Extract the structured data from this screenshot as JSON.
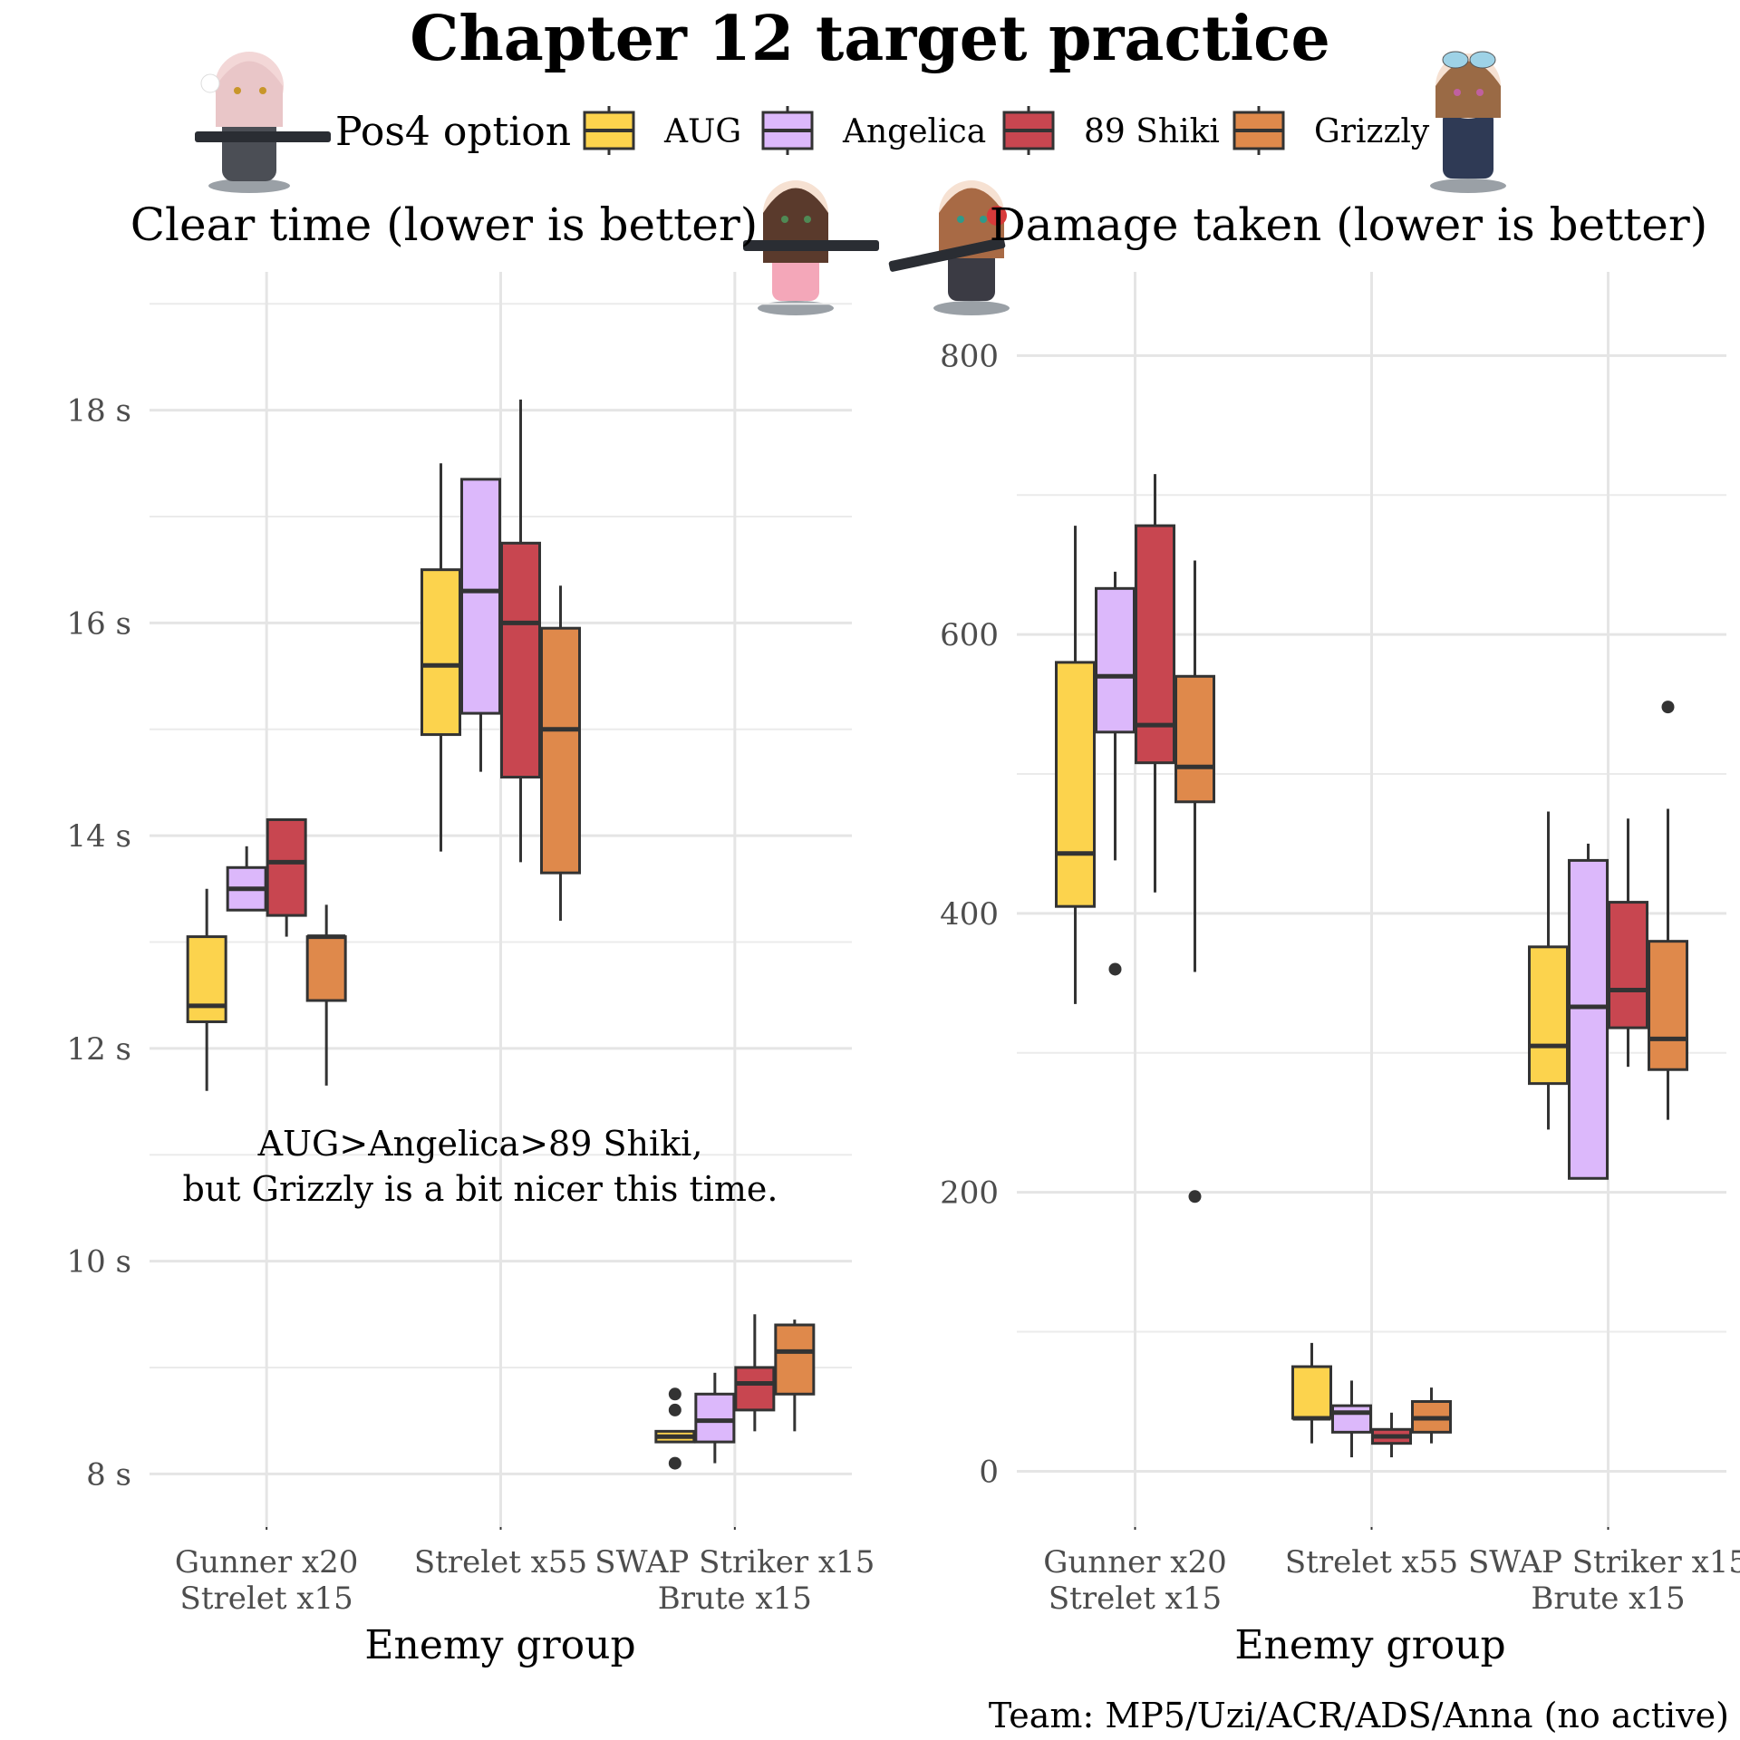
{
  "title": "Chapter 12 target practice",
  "legend": {
    "title": "Pos4 option",
    "placement": "top",
    "entries": [
      {
        "name": "AUG",
        "color": "#fcd34d"
      },
      {
        "name": "Angelica",
        "color": "#dcb8fb"
      },
      {
        "name": "89 Shiki",
        "color": "#c84650"
      },
      {
        "name": "Grizzly",
        "color": "#df894b"
      }
    ]
  },
  "caption": "Team: MP5/Uzi/ACR/ADS/Anna (no active)",
  "chart_data": [
    {
      "type": "box",
      "title": "Clear time (lower is better)",
      "xlabel": "Enemy group",
      "ylabel": "",
      "ylim": [
        7.5,
        19.3
      ],
      "y_ticks": [
        8,
        10,
        12,
        14,
        16,
        18
      ],
      "y_tick_labels": [
        "8 s",
        "10 s",
        "12 s",
        "14 s",
        "16 s",
        "18 s"
      ],
      "grid": true,
      "categories": [
        "Gunner x20\nStrelet x15",
        "Strelet x55",
        "SWAP Striker x15\nBrute x15"
      ],
      "annotation": "AUG>Angelica>89 Shiki,\nbut Grizzly is a bit nicer this time.",
      "series": [
        {
          "name": "AUG",
          "boxes": [
            {
              "min": 11.6,
              "q1": 12.25,
              "median": 12.4,
              "q3": 13.05,
              "max": 13.5,
              "outliers": []
            },
            {
              "min": 13.85,
              "q1": 14.95,
              "median": 15.6,
              "q3": 16.5,
              "max": 17.5,
              "outliers": []
            },
            {
              "min": 8.3,
              "q1": 8.3,
              "median": 8.35,
              "q3": 8.4,
              "max": 8.4,
              "outliers": [
                8.1,
                8.6,
                8.75
              ]
            }
          ]
        },
        {
          "name": "Angelica",
          "boxes": [
            {
              "min": 13.3,
              "q1": 13.3,
              "median": 13.5,
              "q3": 13.7,
              "max": 13.9,
              "outliers": []
            },
            {
              "min": 14.6,
              "q1": 15.15,
              "median": 16.3,
              "q3": 17.35,
              "max": 17.35,
              "outliers": []
            },
            {
              "min": 8.1,
              "q1": 8.3,
              "median": 8.5,
              "q3": 8.75,
              "max": 8.95,
              "outliers": []
            }
          ]
        },
        {
          "name": "89 Shiki",
          "boxes": [
            {
              "min": 13.05,
              "q1": 13.25,
              "median": 13.75,
              "q3": 14.15,
              "max": 14.15,
              "outliers": []
            },
            {
              "min": 13.75,
              "q1": 14.55,
              "median": 16.0,
              "q3": 16.75,
              "max": 18.1,
              "outliers": []
            },
            {
              "min": 8.4,
              "q1": 8.6,
              "median": 8.85,
              "q3": 9.0,
              "max": 9.5,
              "outliers": []
            }
          ]
        },
        {
          "name": "Grizzly",
          "boxes": [
            {
              "min": 11.65,
              "q1": 12.45,
              "median": 13.05,
              "q3": 13.05,
              "max": 13.35,
              "outliers": []
            },
            {
              "min": 13.2,
              "q1": 13.65,
              "median": 15.0,
              "q3": 15.95,
              "max": 16.35,
              "outliers": []
            },
            {
              "min": 8.4,
              "q1": 8.75,
              "median": 9.15,
              "q3": 9.4,
              "max": 9.45,
              "outliers": []
            }
          ]
        }
      ]
    },
    {
      "type": "box",
      "title": "Damage taken (lower is better)",
      "xlabel": "Enemy group",
      "ylabel": "",
      "ylim": [
        -40,
        860
      ],
      "y_ticks": [
        0,
        200,
        400,
        600,
        800
      ],
      "y_tick_labels": [
        "0",
        "200",
        "400",
        "600",
        "800"
      ],
      "grid": true,
      "categories": [
        "Gunner x20\nStrelet x15",
        "Strelet x55",
        "SWAP Striker x15\nBrute x15"
      ],
      "series": [
        {
          "name": "AUG",
          "boxes": [
            {
              "min": 335,
              "q1": 405,
              "median": 443,
              "q3": 580,
              "max": 678,
              "outliers": []
            },
            {
              "min": 20,
              "q1": 38,
              "median": 38,
              "q3": 75,
              "max": 92,
              "outliers": []
            },
            {
              "min": 245,
              "q1": 278,
              "median": 305,
              "q3": 376,
              "max": 473,
              "outliers": []
            }
          ]
        },
        {
          "name": "Angelica",
          "boxes": [
            {
              "min": 438,
              "q1": 530,
              "median": 570,
              "q3": 633,
              "max": 645,
              "outliers": [
                360
              ]
            },
            {
              "min": 10,
              "q1": 28,
              "median": 42,
              "q3": 47,
              "max": 65,
              "outliers": []
            },
            {
              "min": 210,
              "q1": 210,
              "median": 333,
              "q3": 438,
              "max": 450,
              "outliers": []
            }
          ]
        },
        {
          "name": "89 Shiki",
          "boxes": [
            {
              "min": 415,
              "q1": 508,
              "median": 535,
              "q3": 678,
              "max": 715,
              "outliers": []
            },
            {
              "min": 10,
              "q1": 20,
              "median": 25,
              "q3": 30,
              "max": 42,
              "outliers": []
            },
            {
              "min": 290,
              "q1": 318,
              "median": 345,
              "q3": 408,
              "max": 468,
              "outliers": []
            }
          ]
        },
        {
          "name": "Grizzly",
          "boxes": [
            {
              "min": 358,
              "q1": 480,
              "median": 505,
              "q3": 570,
              "max": 653,
              "outliers": [
                197
              ]
            },
            {
              "min": 20,
              "q1": 28,
              "median": 38,
              "q3": 50,
              "max": 60,
              "outliers": []
            },
            {
              "min": 252,
              "q1": 288,
              "median": 310,
              "q3": 380,
              "max": 475,
              "outliers": [
                548
              ]
            }
          ]
        }
      ]
    }
  ]
}
